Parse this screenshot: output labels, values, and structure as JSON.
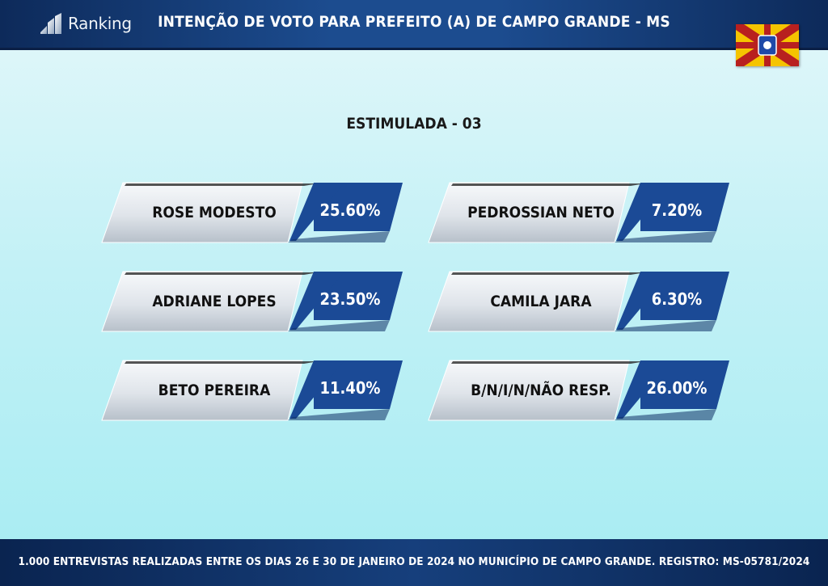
{
  "header": {
    "brand": "Ranking",
    "title": "INTENÇÃO DE VOTO PARA PREFEITO (A) DE CAMPO GRANDE - MS"
  },
  "colors": {
    "accent_blue": "#1b4a96",
    "header_blue": "#0d2a5a",
    "flag_red": "#b8201f",
    "flag_yellow": "#f5c400"
  },
  "chart_data": {
    "type": "table",
    "title": "ESTIMULADA - 03",
    "categories": [
      "ROSE MODESTO",
      "ADRIANE LOPES",
      "BETO PEREIRA",
      "PEDROSSIAN NETO",
      "CAMILA JARA",
      "B/N/I/N/NÃO RESP."
    ],
    "values": [
      25.6,
      23.5,
      11.4,
      7.2,
      6.3,
      26.0
    ],
    "labels": [
      "25.60%",
      "23.50%",
      "11.40%",
      "7.20%",
      "6.30%",
      "26.00%"
    ],
    "unit": "%"
  },
  "footer": {
    "text": "1.000 ENTREVISTAS REALIZADAS ENTRE OS DIAS 26 E 30 DE JANEIRO DE 2024 NO MUNICÍPIO DE CAMPO GRANDE. REGISTRO: MS-05781/2024"
  }
}
